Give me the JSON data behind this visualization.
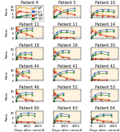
{
  "n_rows": 6,
  "n_cols": 3,
  "line_colors": {
    "euroimmun_igm": "#e8a020",
    "euroimmun_igg": "#3060c8",
    "diapro_igm": "#cc2020",
    "diapro_igg": "#208020"
  },
  "patients": [
    {
      "label": "Patient 4",
      "xmax": 500,
      "xticks": [
        0,
        200,
        400
      ],
      "yticks": [
        0,
        5,
        10,
        15
      ],
      "ymax": 17,
      "e_igm_x": [
        5,
        30,
        60,
        100,
        200,
        350
      ],
      "e_igm_y": [
        0.5,
        13,
        15,
        14,
        13,
        12
      ],
      "e_igg_x": [
        5,
        30,
        60,
        100,
        200,
        350
      ],
      "e_igg_y": [
        0.3,
        0.5,
        0.8,
        1.5,
        3,
        5
      ],
      "d_igm_x": [
        5,
        30,
        60,
        100,
        200,
        350
      ],
      "d_igm_y": [
        0.4,
        7,
        9,
        8,
        7,
        6
      ],
      "d_igg_x": [
        5,
        30,
        60,
        100,
        200,
        350
      ],
      "d_igg_y": [
        0.3,
        0.4,
        0.7,
        1.2,
        2.5,
        4
      ],
      "has_legend": true
    },
    {
      "label": "Patient 5",
      "xmax": 200,
      "xticks": [
        0,
        100,
        200
      ],
      "yticks": [
        0,
        5,
        10
      ],
      "ymax": 12,
      "e_igm_x": [
        5,
        10,
        20,
        50,
        100,
        150
      ],
      "e_igm_y": [
        0.5,
        9,
        11,
        9,
        5,
        3
      ],
      "e_igg_x": [
        5,
        10,
        20,
        50,
        100,
        150
      ],
      "e_igg_y": [
        0.3,
        0.5,
        1.5,
        5,
        8,
        9
      ],
      "d_igm_x": [
        5,
        10,
        20,
        50,
        100,
        150
      ],
      "d_igm_y": [
        0.4,
        6,
        8,
        6,
        4,
        2.5
      ],
      "d_igg_x": [
        5,
        10,
        20,
        50,
        100,
        150
      ],
      "d_igg_y": [
        0.3,
        0.4,
        1,
        3.5,
        6,
        7
      ],
      "has_legend": false
    },
    {
      "label": "Patient 10",
      "xmax": 2500,
      "xticks": [
        0,
        1000,
        2000
      ],
      "yticks": [
        0,
        5,
        10
      ],
      "ymax": 12,
      "e_igm_x": [
        10,
        50,
        200,
        500,
        1000,
        1500,
        2000
      ],
      "e_igm_y": [
        0.5,
        3,
        5,
        4,
        3,
        2,
        1.5
      ],
      "e_igg_x": [
        10,
        50,
        200,
        500,
        1000,
        1500,
        2000
      ],
      "e_igg_y": [
        0.3,
        1,
        4,
        7,
        8,
        8,
        7
      ],
      "d_igm_x": [
        10,
        50,
        200,
        500,
        1000,
        1500,
        2000
      ],
      "d_igm_y": [
        0.4,
        2,
        3,
        2,
        1.5,
        1.2,
        1
      ],
      "d_igg_x": [
        10,
        50,
        200,
        500,
        1000,
        1500,
        2000
      ],
      "d_igg_y": [
        0.3,
        0.8,
        3,
        5,
        6,
        6,
        5
      ],
      "has_legend": false
    },
    {
      "label": "Patient 11",
      "xmax": 2500,
      "xticks": [
        0,
        1000,
        2000
      ],
      "yticks": [
        0,
        5,
        10
      ],
      "ymax": 12,
      "e_igm_x": [
        10,
        50,
        200,
        500,
        1000,
        1500
      ],
      "e_igm_y": [
        10,
        12,
        11,
        8,
        5,
        3
      ],
      "e_igg_x": [
        10,
        50,
        200,
        500,
        1000,
        1500
      ],
      "e_igg_y": [
        0.5,
        2,
        6,
        9,
        10,
        10
      ],
      "d_igm_x": [
        10,
        50,
        200,
        500,
        1000,
        1500
      ],
      "d_igm_y": [
        8,
        10,
        9,
        6,
        4,
        2
      ],
      "d_igg_x": [
        10,
        50,
        200,
        500,
        1000,
        1500
      ],
      "d_igg_y": [
        0.4,
        1.5,
        5,
        7,
        8,
        8
      ],
      "has_legend": false
    },
    {
      "label": "Patient 11",
      "xmax": 2500,
      "xticks": [
        0,
        1000,
        2000
      ],
      "yticks": [
        0,
        5,
        10
      ],
      "ymax": 12,
      "e_igm_x": [
        10,
        100,
        300,
        700,
        1200,
        1800
      ],
      "e_igm_y": [
        0.5,
        1,
        1.5,
        1.2,
        1,
        0.8
      ],
      "e_igg_x": [
        10,
        100,
        300,
        700,
        1200,
        1800
      ],
      "e_igg_y": [
        0.5,
        3,
        6,
        8,
        8,
        7
      ],
      "d_igm_x": [
        10,
        100,
        300,
        700,
        1200,
        1800
      ],
      "d_igm_y": [
        0.4,
        0.8,
        1,
        0.9,
        0.8,
        0.7
      ],
      "d_igg_x": [
        10,
        100,
        300,
        700,
        1200,
        1800
      ],
      "d_igg_y": [
        0.3,
        2,
        4,
        6,
        6,
        5
      ],
      "has_legend": false
    },
    {
      "label": "Patient 14",
      "xmax": 2500,
      "xticks": [
        0,
        1000,
        2000
      ],
      "yticks": [
        0,
        5,
        10
      ],
      "ymax": 12,
      "e_igm_x": [
        10,
        100,
        400,
        800,
        1400,
        2000
      ],
      "e_igm_y": [
        8,
        10,
        8,
        5,
        3,
        2
      ],
      "e_igg_x": [
        10,
        100,
        400,
        800,
        1400,
        2000
      ],
      "e_igg_y": [
        0.5,
        2,
        5,
        8,
        9,
        9
      ],
      "d_igm_x": [
        10,
        100,
        400,
        800,
        1400,
        2000
      ],
      "d_igm_y": [
        6,
        8,
        6,
        4,
        2,
        1.5
      ],
      "d_igg_x": [
        10,
        100,
        400,
        800,
        1400,
        2000
      ],
      "d_igg_y": [
        0.4,
        1.5,
        4,
        6,
        7,
        7
      ],
      "has_legend": false
    },
    {
      "label": "Patient 18",
      "xmax": 2500,
      "xticks": [
        0,
        1000,
        2000
      ],
      "yticks": [
        0,
        5,
        10
      ],
      "ymax": 12,
      "e_igm_x": [
        10,
        100,
        400,
        800,
        1400
      ],
      "e_igm_y": [
        0.5,
        2,
        3,
        2,
        1.5
      ],
      "e_igg_x": [
        10,
        100,
        400,
        800,
        1400
      ],
      "e_igg_y": [
        0.5,
        3,
        6,
        7,
        7
      ],
      "d_igm_x": [
        10,
        100,
        400,
        800,
        1400
      ],
      "d_igm_y": [
        0.4,
        1.5,
        2,
        1.8,
        1.2
      ],
      "d_igg_x": [
        10,
        100,
        400,
        800,
        1400
      ],
      "d_igg_y": [
        0.3,
        2,
        4.5,
        5,
        5
      ],
      "has_legend": false
    },
    {
      "label": "Patient 19",
      "xmax": 2500,
      "xticks": [
        0,
        1000,
        2000
      ],
      "yticks": [
        0,
        5,
        10
      ],
      "ymax": 12,
      "e_igm_x": [
        10,
        50,
        150,
        400,
        800,
        1400
      ],
      "e_igm_y": [
        5,
        10,
        9,
        6,
        3,
        2
      ],
      "e_igg_x": [
        10,
        50,
        150,
        400,
        800,
        1400
      ],
      "e_igg_y": [
        0.5,
        1.5,
        4,
        7,
        9,
        9
      ],
      "d_igm_x": [
        10,
        50,
        150,
        400,
        800,
        1400
      ],
      "d_igm_y": [
        4,
        8,
        7,
        5,
        2,
        1.5
      ],
      "d_igg_x": [
        10,
        50,
        150,
        400,
        800,
        1400
      ],
      "d_igg_y": [
        0.4,
        1,
        3,
        5,
        7,
        7
      ],
      "has_legend": false
    },
    {
      "label": "Patient 20",
      "xmax": 2500,
      "xticks": [
        0,
        1000,
        2000
      ],
      "yticks": [
        0,
        5,
        10
      ],
      "ymax": 12,
      "e_igm_x": [
        10,
        50,
        150,
        400,
        900,
        1500
      ],
      "e_igm_y": [
        0.5,
        0.8,
        1,
        0.8,
        0.7,
        0.6
      ],
      "e_igg_x": [
        10,
        50,
        150,
        400,
        900,
        1500
      ],
      "e_igg_y": [
        0.5,
        2,
        5,
        7,
        8,
        7
      ],
      "d_igm_x": [
        10,
        50,
        150,
        400,
        900,
        1500
      ],
      "d_igm_y": [
        0.4,
        0.6,
        0.8,
        0.7,
        0.6,
        0.5
      ],
      "d_igg_x": [
        10,
        50,
        150,
        400,
        900,
        1500
      ],
      "d_igg_y": [
        0.3,
        1.5,
        4,
        5,
        6,
        5
      ],
      "has_legend": false
    },
    {
      "label": "Patient 44",
      "xmax": 2500,
      "xticks": [
        0,
        1000,
        2000
      ],
      "yticks": [
        0,
        5,
        10
      ],
      "ymax": 12,
      "e_igm_x": [
        10,
        50,
        200,
        600,
        1200
      ],
      "e_igm_y": [
        8,
        12,
        10,
        7,
        4
      ],
      "e_igg_x": [
        10,
        50,
        200,
        600,
        1200
      ],
      "e_igg_y": [
        0.5,
        2,
        6,
        9,
        10
      ],
      "d_igm_x": [
        10,
        50,
        200,
        600,
        1200
      ],
      "d_igm_y": [
        6,
        10,
        8,
        5,
        3
      ],
      "d_igg_x": [
        10,
        50,
        200,
        600,
        1200
      ],
      "d_igg_y": [
        0.4,
        1.5,
        5,
        7,
        8
      ],
      "has_legend": false
    },
    {
      "label": "Patient 41",
      "xmax": 2500,
      "xticks": [
        0,
        1000,
        2000
      ],
      "yticks": [
        0,
        5,
        10
      ],
      "ymax": 12,
      "e_igm_x": [
        10,
        50,
        200,
        600,
        1200,
        1800
      ],
      "e_igm_y": [
        10,
        12,
        10,
        6,
        3,
        1.5
      ],
      "e_igg_x": [
        10,
        50,
        200,
        600,
        1200,
        1800
      ],
      "e_igg_y": [
        0.5,
        1.5,
        5,
        8,
        10,
        10
      ],
      "d_igm_x": [
        10,
        50,
        200,
        600,
        1200,
        1800
      ],
      "d_igm_y": [
        8,
        10,
        8,
        5,
        2,
        1
      ],
      "d_igg_x": [
        10,
        50,
        200,
        600,
        1200,
        1800
      ],
      "d_igg_y": [
        0.4,
        1,
        4,
        6,
        8,
        8
      ],
      "has_legend": false
    },
    {
      "label": "Patient 42",
      "xmax": 2500,
      "xticks": [
        0,
        1000,
        2000
      ],
      "yticks": [
        0,
        5,
        10
      ],
      "ymax": 12,
      "e_igm_x": [
        10,
        80,
        300,
        700,
        1400
      ],
      "e_igm_y": [
        1,
        1.5,
        1.2,
        0.9,
        0.7
      ],
      "e_igg_x": [
        10,
        80,
        300,
        700,
        1400
      ],
      "e_igg_y": [
        0.5,
        3,
        7,
        9,
        9
      ],
      "d_igm_x": [
        10,
        80,
        300,
        700,
        1400
      ],
      "d_igm_y": [
        0.8,
        1.2,
        1,
        0.8,
        0.6
      ],
      "d_igg_x": [
        10,
        80,
        300,
        700,
        1400
      ],
      "d_igg_y": [
        0.4,
        2,
        5,
        7,
        7
      ],
      "has_legend": false
    },
    {
      "label": "Patient 46",
      "xmax": 2500,
      "xticks": [
        0,
        1000,
        2000
      ],
      "yticks": [
        0,
        5,
        10
      ],
      "ymax": 12,
      "e_igm_x": [
        10,
        50,
        150,
        400,
        900,
        1500
      ],
      "e_igm_y": [
        10,
        12,
        10,
        6,
        3,
        2
      ],
      "e_igg_x": [
        10,
        50,
        150,
        400,
        900,
        1500
      ],
      "e_igg_y": [
        0.5,
        2,
        5,
        8,
        9,
        9
      ],
      "d_igm_x": [
        10,
        50,
        150,
        400,
        900,
        1500
      ],
      "d_igm_y": [
        8,
        10,
        8,
        5,
        2,
        1
      ],
      "d_igg_x": [
        10,
        50,
        150,
        400,
        900,
        1500
      ],
      "d_igg_y": [
        0.4,
        1.5,
        4,
        6,
        7,
        7
      ],
      "has_legend": false
    },
    {
      "label": "Patient 52",
      "xmax": 2500,
      "xticks": [
        0,
        1000,
        2000
      ],
      "yticks": [
        0,
        5,
        10,
        15
      ],
      "ymax": 17,
      "e_igm_x": [
        10,
        50,
        150,
        400,
        900
      ],
      "e_igm_y": [
        12,
        15,
        13,
        8,
        4
      ],
      "e_igg_x": [
        10,
        50,
        150,
        400,
        900
      ],
      "e_igg_y": [
        0.5,
        2,
        6,
        10,
        12
      ],
      "d_igm_x": [
        10,
        50,
        150,
        400,
        900
      ],
      "d_igm_y": [
        10,
        13,
        11,
        6,
        3
      ],
      "d_igg_x": [
        10,
        50,
        150,
        400,
        900
      ],
      "d_igg_y": [
        0.4,
        1.5,
        5,
        8,
        10
      ],
      "has_legend": false
    },
    {
      "label": "Patient 53",
      "xmax": 2500,
      "xticks": [
        0,
        1000,
        2000
      ],
      "yticks": [
        0,
        5,
        10
      ],
      "ymax": 12,
      "e_igm_x": [
        10,
        100,
        400,
        900,
        1600
      ],
      "e_igm_y": [
        0.5,
        2,
        4,
        3,
        2
      ],
      "e_igg_x": [
        10,
        100,
        400,
        900,
        1600
      ],
      "e_igg_y": [
        0.5,
        3,
        7,
        9,
        8
      ],
      "d_igm_x": [
        10,
        100,
        400,
        900,
        1600
      ],
      "d_igm_y": [
        0.4,
        1.5,
        3,
        2,
        1.5
      ],
      "d_igg_x": [
        10,
        100,
        400,
        900,
        1600
      ],
      "d_igg_y": [
        0.3,
        2,
        5,
        7,
        6
      ],
      "has_legend": false
    },
    {
      "label": "Patient 60",
      "xmax": 2500,
      "xticks": [
        0,
        1000,
        2000
      ],
      "yticks": [
        0,
        5,
        10
      ],
      "ymax": 12,
      "e_igm_x": [
        10,
        50,
        200,
        500,
        1100,
        1700
      ],
      "e_igm_y": [
        1,
        1.5,
        1.2,
        1,
        0.8,
        0.7
      ],
      "e_igg_x": [
        10,
        50,
        200,
        500,
        1100,
        1700
      ],
      "e_igg_y": [
        0.5,
        2,
        6,
        9,
        10,
        9
      ],
      "d_igm_x": [
        10,
        50,
        200,
        500,
        1100,
        1700
      ],
      "d_igm_y": [
        0.8,
        1.2,
        1,
        0.9,
        0.7,
        0.6
      ],
      "d_igg_x": [
        10,
        50,
        200,
        500,
        1100,
        1700
      ],
      "d_igg_y": [
        0.4,
        1.5,
        5,
        7,
        8,
        7
      ],
      "has_legend": false
    },
    {
      "label": "Patient 63",
      "xmax": 2500,
      "xticks": [
        0,
        1000,
        2000
      ],
      "yticks": [
        0,
        5,
        10
      ],
      "ymax": 12,
      "e_igm_x": [
        10,
        80,
        300,
        700,
        1400
      ],
      "e_igm_y": [
        0.5,
        2,
        3,
        2,
        1.5
      ],
      "e_igg_x": [
        10,
        80,
        300,
        700,
        1400
      ],
      "e_igg_y": [
        0.5,
        3,
        7,
        9,
        8
      ],
      "d_igm_x": [
        10,
        80,
        300,
        700,
        1400
      ],
      "d_igm_y": [
        0.4,
        1.5,
        2,
        1.8,
        1.2
      ],
      "d_igg_x": [
        10,
        80,
        300,
        700,
        1400
      ],
      "d_igg_y": [
        0.3,
        2,
        5,
        7,
        6
      ],
      "has_legend": false
    },
    {
      "label": "Patient 64",
      "xmax": 2500,
      "xticks": [
        0,
        1000,
        2000
      ],
      "yticks": [
        0,
        5,
        10,
        15
      ],
      "ymax": 17,
      "e_igm_x": [
        10,
        50,
        200,
        500,
        1100,
        1800
      ],
      "e_igm_y": [
        5,
        8,
        7,
        5,
        3,
        2
      ],
      "e_igg_x": [
        10,
        50,
        200,
        500,
        1100,
        1800
      ],
      "e_igg_y": [
        0.5,
        2,
        6,
        10,
        12,
        12
      ],
      "d_igm_x": [
        10,
        50,
        200,
        500,
        1100,
        1800
      ],
      "d_igm_y": [
        4,
        6,
        5,
        4,
        2,
        1.5
      ],
      "d_igg_x": [
        10,
        50,
        200,
        500,
        1100,
        1800
      ],
      "d_igg_y": [
        0.4,
        1.5,
        5,
        8,
        10,
        10
      ],
      "has_legend": false
    }
  ],
  "cutoff_value": 1.1,
  "igm_shade": "#ffe8c0",
  "igg_shade": "#e0f0e0",
  "xlabel": "Days after consult",
  "ylabel": "Ratio",
  "title_fs": 3.5,
  "label_fs": 3.0,
  "tick_fs": 2.8
}
